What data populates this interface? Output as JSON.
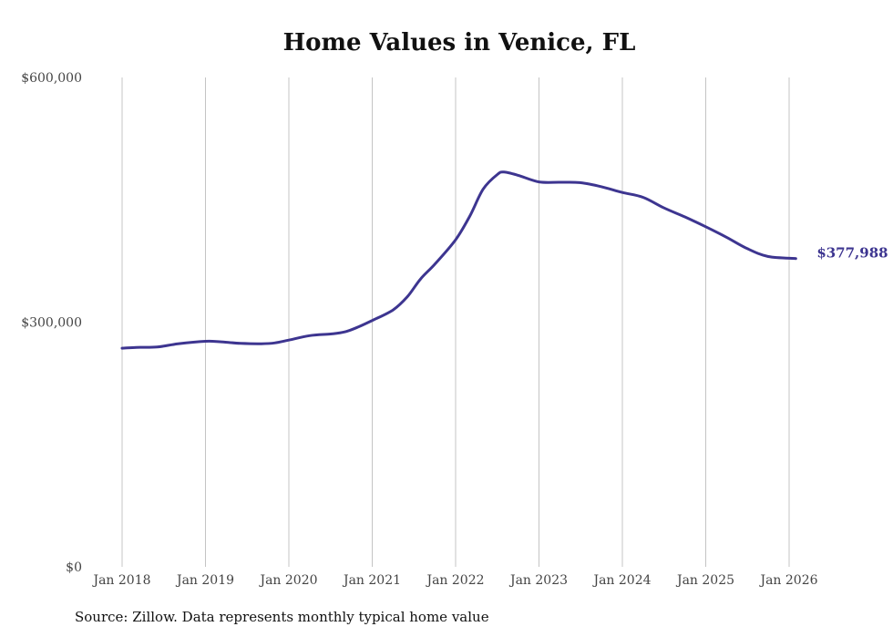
{
  "chart_data": {
    "type": "line",
    "title": "Home Values in Venice, FL",
    "xlabel": "",
    "ylabel": "",
    "ylim": [
      0,
      600000
    ],
    "yticks": [
      {
        "value": 0,
        "label": "$0"
      },
      {
        "value": 300000,
        "label": "$300,000"
      },
      {
        "value": 600000,
        "label": "$600,000"
      }
    ],
    "xticks": [
      {
        "value": 2018,
        "label": "Jan 2018"
      },
      {
        "value": 2019,
        "label": "Jan 2019"
      },
      {
        "value": 2020,
        "label": "Jan 2020"
      },
      {
        "value": 2021,
        "label": "Jan 2021"
      },
      {
        "value": 2022,
        "label": "Jan 2022"
      },
      {
        "value": 2023,
        "label": "Jan 2023"
      },
      {
        "value": 2024,
        "label": "Jan 2024"
      },
      {
        "value": 2025,
        "label": "Jan 2025"
      },
      {
        "value": 2026,
        "label": "Jan 2026"
      }
    ],
    "xlim": [
      2018,
      2026
    ],
    "grid": {
      "vertical": true,
      "horizontal": false
    },
    "series": [
      {
        "name": "Typical home value",
        "color": "#3d3590",
        "points": [
          [
            2018.0,
            268000
          ],
          [
            2018.17,
            269000
          ],
          [
            2018.42,
            269500
          ],
          [
            2018.67,
            273500
          ],
          [
            2019.0,
            276500
          ],
          [
            2019.17,
            276000
          ],
          [
            2019.42,
            274000
          ],
          [
            2019.67,
            273500
          ],
          [
            2019.83,
            274500
          ],
          [
            2020.0,
            278000
          ],
          [
            2020.25,
            283500
          ],
          [
            2020.5,
            285500
          ],
          [
            2020.67,
            288000
          ],
          [
            2020.83,
            294000
          ],
          [
            2021.0,
            302000
          ],
          [
            2021.25,
            315000
          ],
          [
            2021.42,
            331000
          ],
          [
            2021.58,
            353000
          ],
          [
            2021.75,
            371000
          ],
          [
            2022.0,
            401000
          ],
          [
            2022.17,
            430000
          ],
          [
            2022.33,
            463000
          ],
          [
            2022.5,
            481000
          ],
          [
            2022.58,
            484000
          ],
          [
            2022.75,
            480000
          ],
          [
            2023.0,
            472000
          ],
          [
            2023.25,
            471500
          ],
          [
            2023.5,
            471000
          ],
          [
            2023.75,
            466000
          ],
          [
            2024.0,
            459000
          ],
          [
            2024.25,
            453000
          ],
          [
            2024.5,
            440000
          ],
          [
            2024.75,
            429000
          ],
          [
            2025.0,
            417000
          ],
          [
            2025.25,
            404000
          ],
          [
            2025.5,
            390000
          ],
          [
            2025.75,
            380500
          ],
          [
            2026.08,
            377988
          ]
        ]
      }
    ],
    "annotations": [
      {
        "text": "$377,988",
        "x": 2026.08,
        "y": 377988
      }
    ],
    "source": "Source: Zillow. Data represents monthly typical home value"
  }
}
